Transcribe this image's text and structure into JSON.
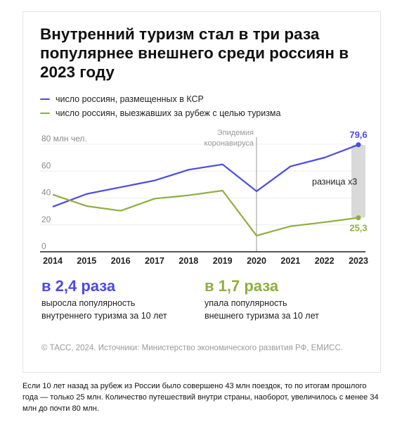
{
  "title": "Внутренний туризм стал в три раза популярнее внешнего среди россиян в 2023 году",
  "legend": [
    {
      "label": "число россиян, размещенных в КСР",
      "color": "#4a4ae6"
    },
    {
      "label": "число россиян, выезжавших за рубеж с целью туризма",
      "color": "#8fae3f"
    }
  ],
  "chart_data": {
    "type": "line",
    "x": [
      2014,
      2015,
      2016,
      2017,
      2018,
      2019,
      2020,
      2021,
      2022,
      2023
    ],
    "series": [
      {
        "name": "число россиян, размещенных в КСР",
        "color": "#4a4ae6",
        "values": [
          33.5,
          43,
          48,
          53,
          61,
          65,
          45,
          63.5,
          70,
          79.6
        ]
      },
      {
        "name": "число россиян, выезжавших за рубеж с целью туризма",
        "color": "#8fae3f",
        "values": [
          42.5,
          34,
          30.5,
          39.5,
          42,
          45.5,
          12,
          19,
          22,
          25.3
        ]
      }
    ],
    "ylim": [
      0,
      80
    ],
    "yticks": [
      "0",
      "20",
      "40",
      "60",
      "80 млн чел."
    ],
    "end_labels": [
      "79,6",
      "25,3"
    ],
    "annotation": "Эпидемия коронавируса",
    "annotation_x": 2020,
    "difference_label": "разница х3",
    "grid": true
  },
  "stats": [
    {
      "headline": "в 2,4 раза",
      "text": "выросла популярность\nвнутреннего туризма за 10 лет",
      "color": "#4a4ae6"
    },
    {
      "headline": "в 1,7 раза",
      "text": "упала популярность\nвнешнего туризма за 10 лет",
      "color": "#8fae3f"
    }
  ],
  "source": "© ТАСС, 2024. Источники: Министерство экономического развития РФ, ЕМИСС.",
  "caption": "Если 10 лет назад за рубеж из России было совершено 43 млн поездок, то по итогам прошлого года — только 25 млн. Количество путешествий внутри страны, наоборот, увеличилось с менее 34 млн до почти 80 млн."
}
